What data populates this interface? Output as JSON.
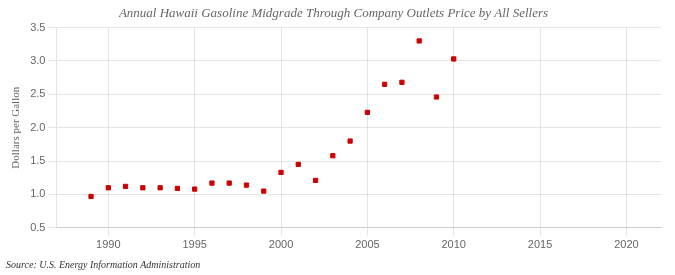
{
  "chart_data": {
    "type": "scatter",
    "title": "Annual Hawaii Gasoline Midgrade Through Company Outlets Price by All Sellers",
    "ylabel": "Dollars per Gallon",
    "annotations": [
      "Source: U.S. Energy Information Administration"
    ],
    "x": [
      1989,
      1990,
      1991,
      1992,
      1993,
      1994,
      1995,
      1996,
      1997,
      1998,
      1999,
      2000,
      2001,
      2002,
      2003,
      2004,
      2005,
      2006,
      2007,
      2008,
      2009,
      2010
    ],
    "values": [
      0.97,
      1.1,
      1.12,
      1.1,
      1.1,
      1.09,
      1.08,
      1.17,
      1.17,
      1.14,
      1.05,
      1.33,
      1.45,
      1.21,
      1.58,
      1.8,
      2.23,
      2.65,
      2.68,
      3.3,
      2.46,
      3.03
    ],
    "color": "#cc0000",
    "marker": "square",
    "xlim": [
      1987,
      2022
    ],
    "xticks": [
      1990,
      1995,
      2000,
      2005,
      2010,
      2015,
      2020
    ],
    "ylim": [
      0.5,
      3.5
    ],
    "yticks": [
      0.5,
      {
        "value": 1.0,
        "label": "1.0"
      },
      1.5,
      {
        "value": 2.0,
        "label": "2.0"
      },
      2.5,
      {
        "value": 3.0,
        "label": "3.0"
      },
      3.5
    ],
    "grid": true
  }
}
